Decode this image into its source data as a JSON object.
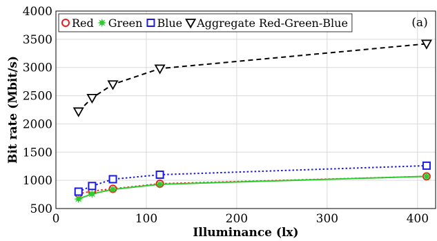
{
  "chart_data": {
    "type": "line",
    "panel_label": "(a)",
    "xlabel": "Illuminance (lx)",
    "ylabel": "Bit rate (Mbit/s)",
    "xlim": [
      0,
      420
    ],
    "ylim": [
      500,
      4000
    ],
    "xticks": [
      0,
      100,
      200,
      300,
      400
    ],
    "yticks": [
      500,
      1000,
      1500,
      2000,
      2500,
      3000,
      3500,
      4000
    ],
    "grid": true,
    "legend_position": "top",
    "series": [
      {
        "name": "Red",
        "color": "#e8201c",
        "marker": "circle-open",
        "line": "dotted",
        "x": [
          25,
          40,
          63,
          115,
          410
        ],
        "y": [
          760,
          810,
          850,
          940,
          1070
        ]
      },
      {
        "name": "Green",
        "color": "#2ecc2e",
        "marker": "star-filled",
        "line": "solid",
        "x": [
          25,
          40,
          63,
          115,
          410
        ],
        "y": [
          670,
          760,
          840,
          930,
          1070
        ]
      },
      {
        "name": "Blue",
        "color": "#1a1adf",
        "marker": "square-open",
        "line": "dotted",
        "x": [
          25,
          40,
          63,
          115,
          410
        ],
        "y": [
          800,
          900,
          1020,
          1100,
          1260
        ]
      },
      {
        "name": "Aggregate Red-Green-Blue",
        "color": "#000000",
        "marker": "triangle-down-open",
        "line": "dashed",
        "x": [
          25,
          40,
          63,
          115,
          410
        ],
        "y": [
          2220,
          2460,
          2700,
          2980,
          3420
        ]
      }
    ]
  }
}
